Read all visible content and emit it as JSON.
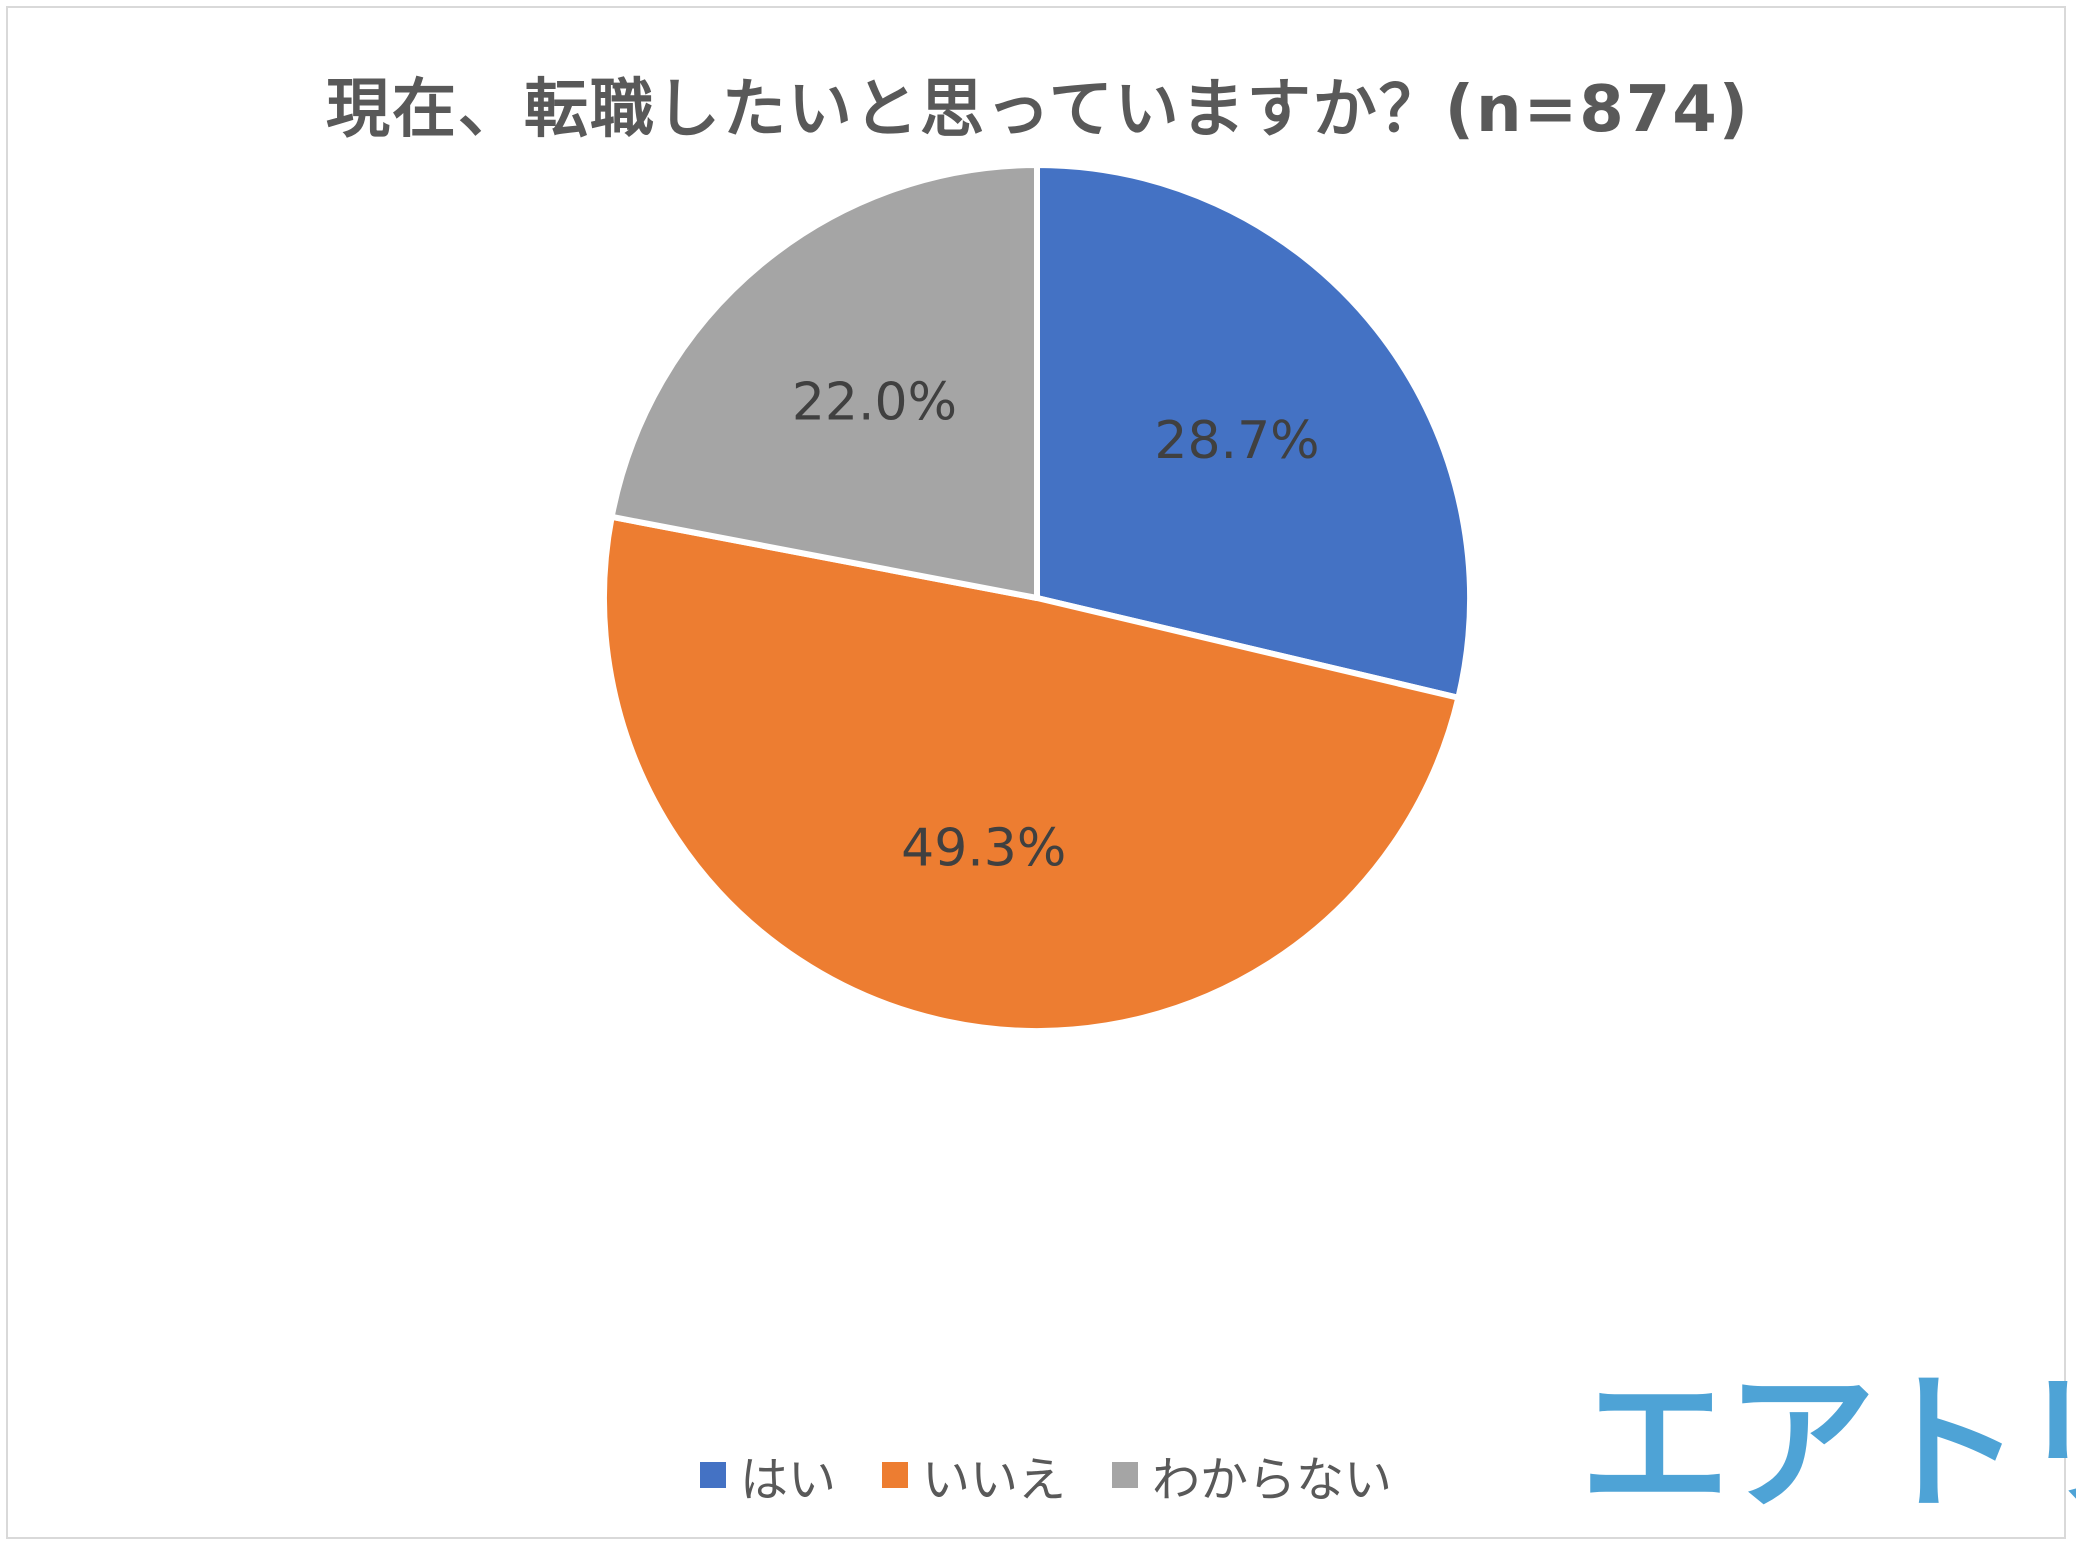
{
  "chart_data": {
    "type": "pie",
    "title": "現在、転職したいと思っていますか？(n=874)",
    "start_angle_deg": 0,
    "direction": "clockwise",
    "slices": [
      {
        "label": "はい",
        "value": 28.7,
        "display": "28.7%",
        "color": "#4472c4"
      },
      {
        "label": "いいえ",
        "value": 49.3,
        "display": "49.3%",
        "color": "#ed7d31"
      },
      {
        "label": "わからない",
        "value": 22.0,
        "display": "22.0%",
        "color": "#a5a5a5"
      }
    ],
    "legend_position": "bottom"
  },
  "logo": {
    "text": "エアトリ",
    "color": "#4ea3d6"
  }
}
